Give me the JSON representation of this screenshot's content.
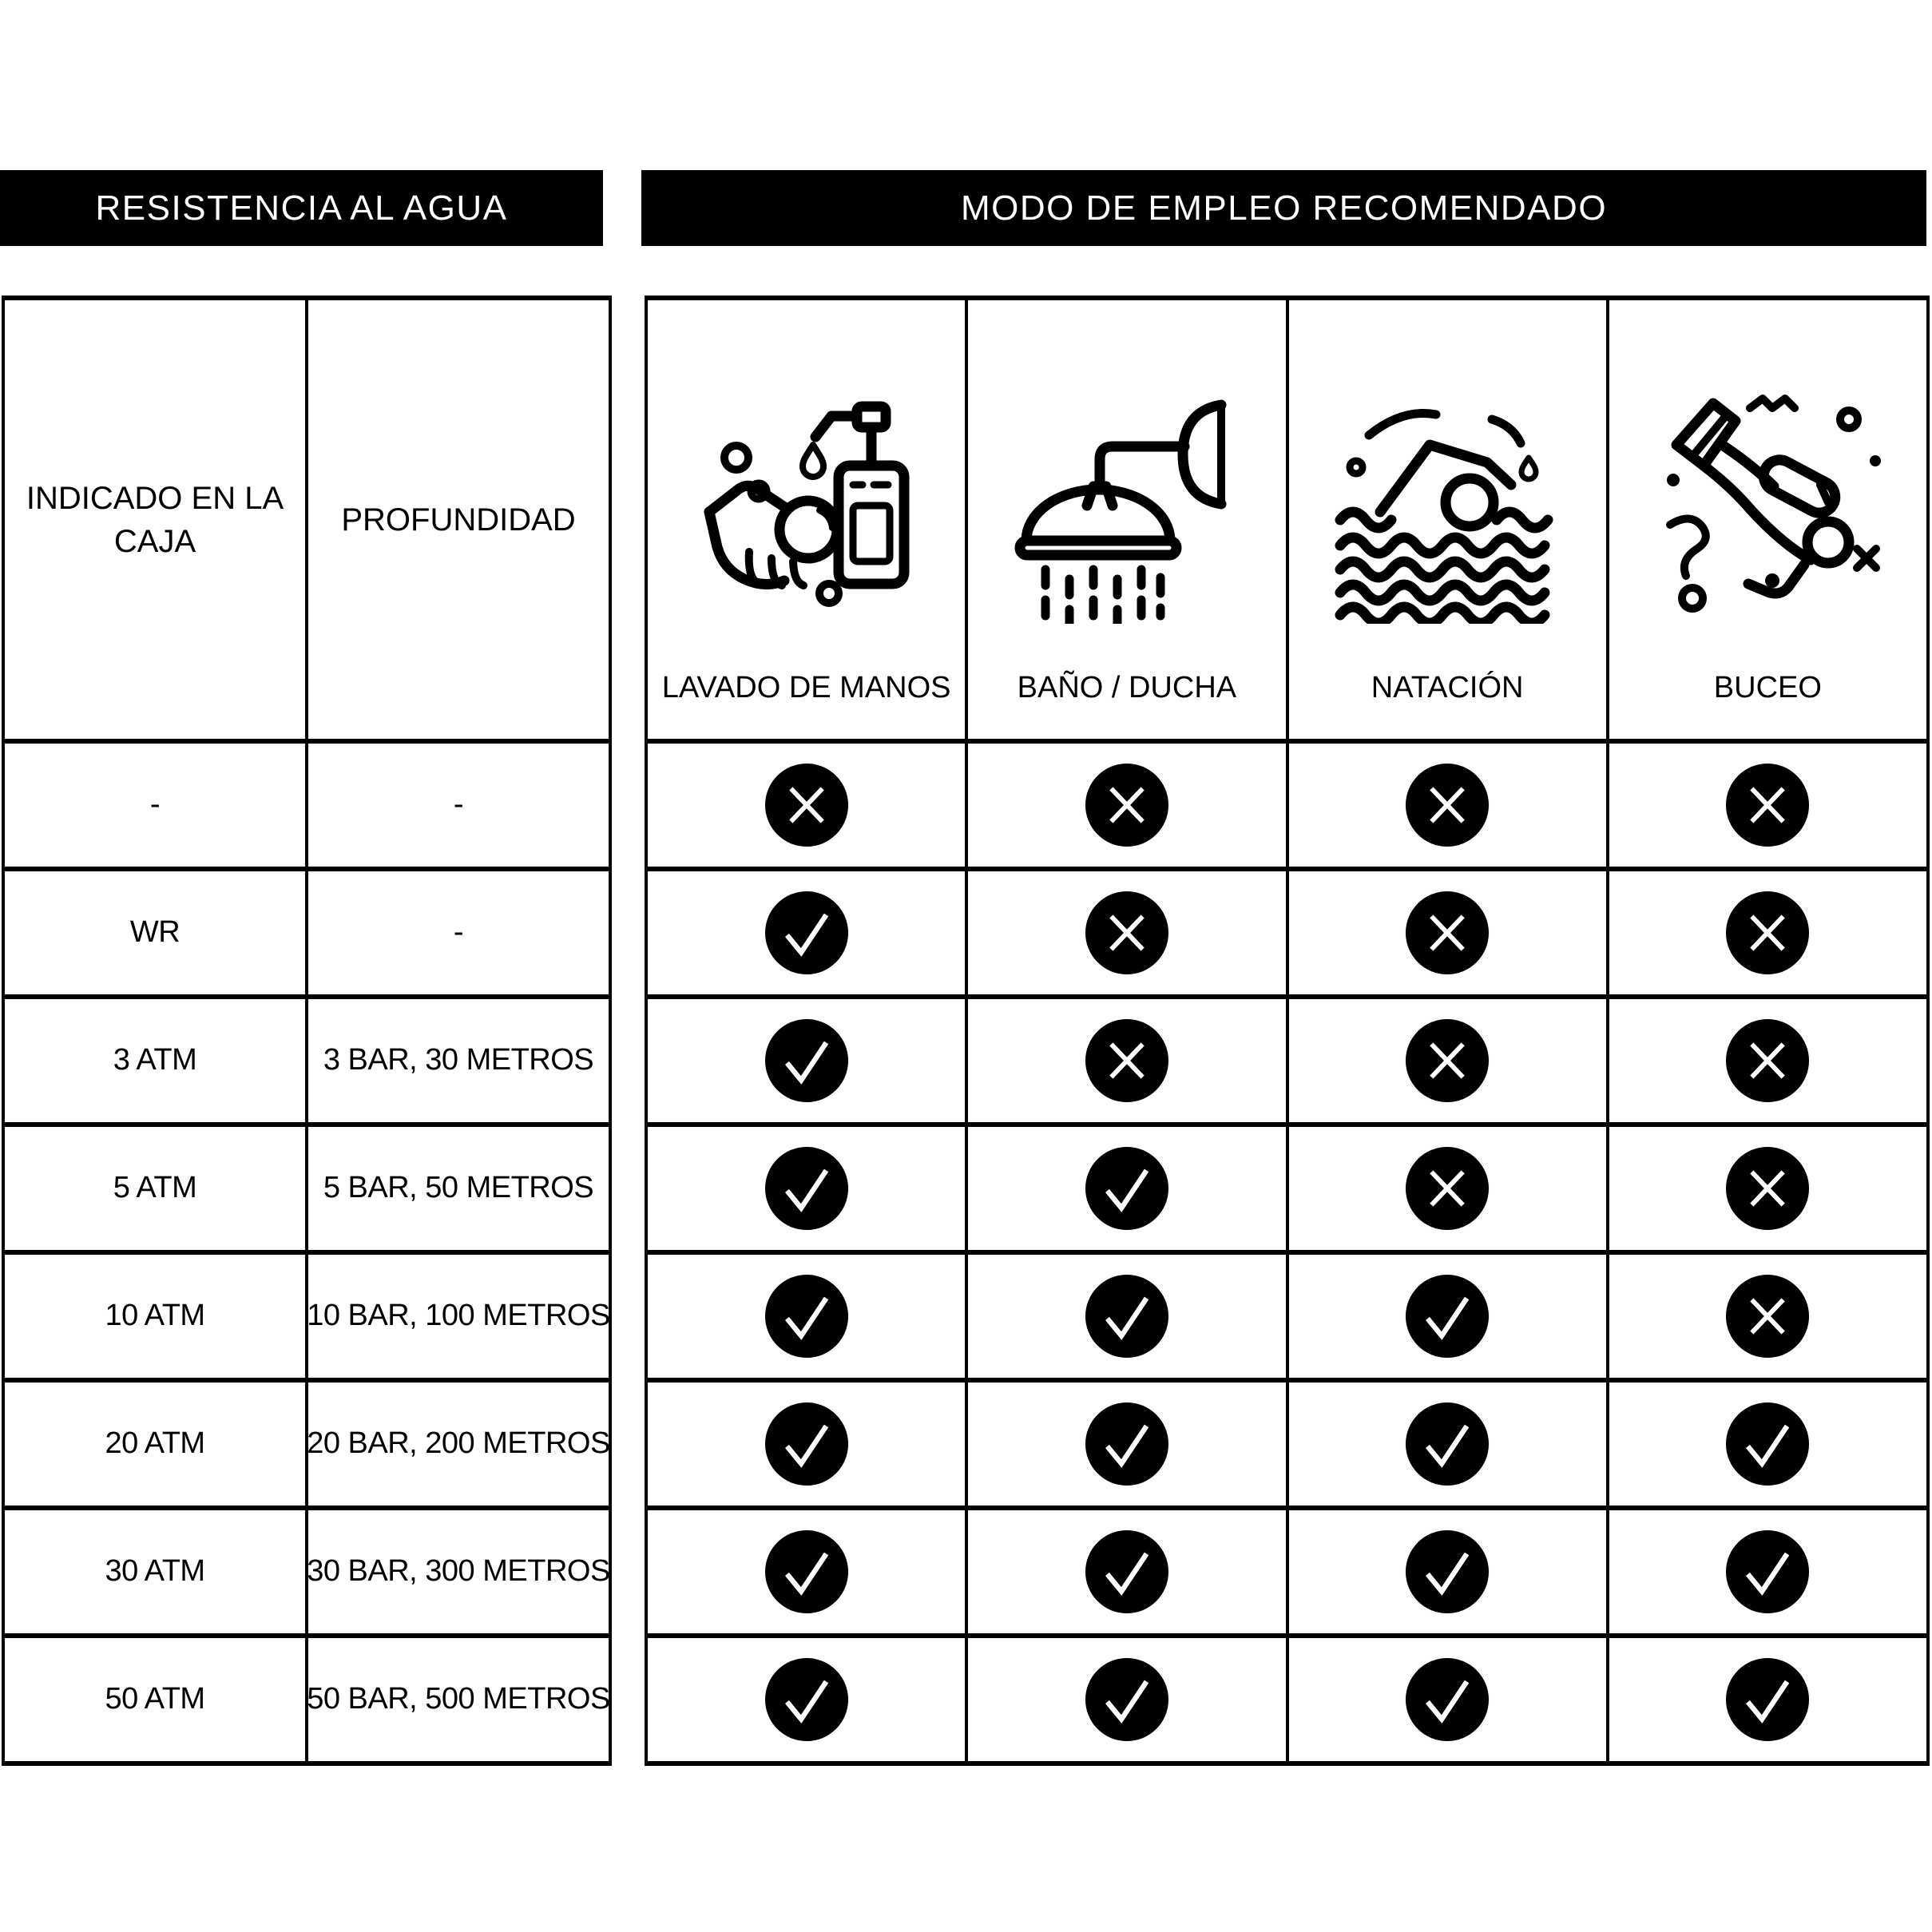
{
  "page": {
    "paper": "#ffffff",
    "ink": "#000000"
  },
  "left_panel": {
    "title": "RESISTENCIA AL AGUA",
    "columns": [
      "INDICADO EN LA CAJA",
      "PROFUNDIDAD"
    ],
    "rows": [
      {
        "box": "-",
        "depth": "-"
      },
      {
        "box": "WR",
        "depth": "-"
      },
      {
        "box": "3 ATM",
        "depth": "3 BAR, 30 METROS"
      },
      {
        "box": "5 ATM",
        "depth": "5 BAR, 50 METROS"
      },
      {
        "box": "10 ATM",
        "depth": "10 BAR, 100 METROS"
      },
      {
        "box": "20 ATM",
        "depth": "20 BAR, 200 METROS"
      },
      {
        "box": "30 ATM",
        "depth": "30 BAR, 300 METROS"
      },
      {
        "box": "50 ATM",
        "depth": "50 BAR, 500 METROS"
      }
    ]
  },
  "right_panel": {
    "title": "MODO DE EMPLEO RECOMENDADO",
    "activities": [
      {
        "label": "LAVADO DE MANOS",
        "icon": "handwash-icon"
      },
      {
        "label": "BAÑO / DUCHA",
        "icon": "shower-icon"
      },
      {
        "label": "NATACIÓN",
        "icon": "swimming-icon"
      },
      {
        "label": "BUCEO",
        "icon": "diving-icon"
      }
    ],
    "marks": {
      "legend": {
        "check": "permitido",
        "cross": "no permitido"
      },
      "rows": [
        [
          "cross",
          "cross",
          "cross",
          "cross"
        ],
        [
          "check",
          "cross",
          "cross",
          "cross"
        ],
        [
          "check",
          "cross",
          "cross",
          "cross"
        ],
        [
          "check",
          "check",
          "cross",
          "cross"
        ],
        [
          "check",
          "check",
          "check",
          "cross"
        ],
        [
          "check",
          "check",
          "check",
          "check"
        ],
        [
          "check",
          "check",
          "check",
          "check"
        ],
        [
          "check",
          "check",
          "check",
          "check"
        ]
      ]
    }
  }
}
